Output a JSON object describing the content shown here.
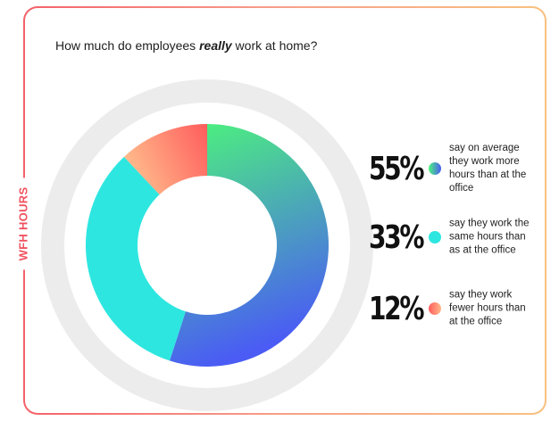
{
  "side_label": "WFH HOURS",
  "title": {
    "pre": "How much do employees ",
    "em": "really",
    "post": " work at home?"
  },
  "chart_data": {
    "type": "pie",
    "style": "donut",
    "slices": [
      {
        "value": 55,
        "label": "55%",
        "description": "say on average they work more hours than at the office",
        "color_start": "#4cf57a",
        "color_end": "#4a5cf4"
      },
      {
        "value": 33,
        "label": "33%",
        "description": "say they work the same hours than as at the office",
        "color_start": "#2ee6e0",
        "color_end": "#2ee6e0"
      },
      {
        "value": 12,
        "label": "12%",
        "description": "say they work fewer hours than at the office",
        "color_start": "#ff5c5c",
        "color_end": "#ffb88a"
      }
    ],
    "track_color": "#ececec",
    "legend_position": "right"
  }
}
